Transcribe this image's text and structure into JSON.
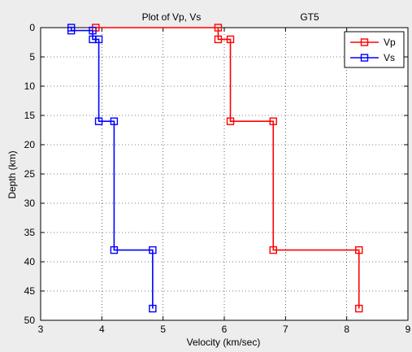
{
  "chart_data": {
    "type": "line",
    "title_left": "Plot of Vp, Vs",
    "title_right": "GT5",
    "xlabel": "Velocity (km/sec)",
    "ylabel": "Depth (km)",
    "xlim": [
      3,
      9
    ],
    "ylim": [
      0,
      50
    ],
    "y_reversed": true,
    "xticks": [
      3,
      4,
      5,
      6,
      7,
      8,
      9
    ],
    "yticks": [
      0,
      5,
      10,
      15,
      20,
      25,
      30,
      35,
      40,
      45,
      50
    ],
    "grid": true,
    "legend_position": "top-right",
    "marker": "square",
    "series": [
      {
        "name": "Vp",
        "color": "#ff0000",
        "points": [
          {
            "x": 3.9,
            "y": 0.0
          },
          {
            "x": 5.9,
            "y": 0.0
          },
          {
            "x": 5.9,
            "y": 2.0
          },
          {
            "x": 6.1,
            "y": 2.0
          },
          {
            "x": 6.1,
            "y": 16.0
          },
          {
            "x": 6.8,
            "y": 16.0
          },
          {
            "x": 6.8,
            "y": 38.0
          },
          {
            "x": 8.2,
            "y": 38.0
          },
          {
            "x": 8.2,
            "y": 48.0
          }
        ]
      },
      {
        "name": "Vs",
        "color": "#0000ff",
        "points": [
          {
            "x": 3.5,
            "y": 0.0
          },
          {
            "x": 3.5,
            "y": 0.5
          },
          {
            "x": 3.85,
            "y": 0.5
          },
          {
            "x": 3.85,
            "y": 2.0
          },
          {
            "x": 3.95,
            "y": 2.0
          },
          {
            "x": 3.95,
            "y": 16.0
          },
          {
            "x": 4.2,
            "y": 16.0
          },
          {
            "x": 4.2,
            "y": 38.0
          },
          {
            "x": 4.83,
            "y": 38.0
          },
          {
            "x": 4.83,
            "y": 48.0
          }
        ]
      }
    ]
  }
}
